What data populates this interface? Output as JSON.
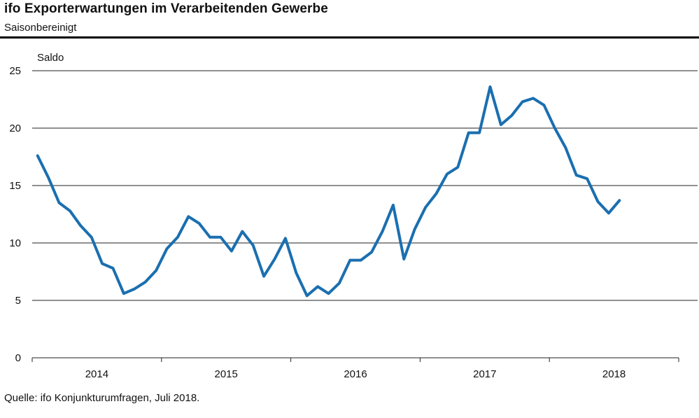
{
  "header": {
    "title": "ifo Exporterwartungen im Verarbeitenden Gewerbe",
    "subtitle": "Saisonbereinigt"
  },
  "footer": {
    "source": "Quelle: ifo Konjunkturumfragen, Juli 2018."
  },
  "chart_data": {
    "type": "line",
    "title": "ifo Exporterwartungen im Verarbeitenden Gewerbe",
    "subtitle": "Saisonbereinigt",
    "ylabel": "Saldo",
    "ylim": [
      0,
      25
    ],
    "yticks": [
      "0",
      "5",
      "10",
      "15",
      "20",
      "25"
    ],
    "year_labels": [
      "2014",
      "2015",
      "2016",
      "2017",
      "2018"
    ],
    "grid": "horizontal",
    "color": "#1a6fb0",
    "series": [
      {
        "x": [
          "2014-01",
          "2014-02",
          "2014-03",
          "2014-04",
          "2014-05",
          "2014-06",
          "2014-07",
          "2014-08",
          "2014-09",
          "2014-10",
          "2014-11",
          "2014-12",
          "2015-01",
          "2015-02",
          "2015-03",
          "2015-04",
          "2015-05",
          "2015-06",
          "2015-07",
          "2015-08",
          "2015-09",
          "2015-10",
          "2015-11",
          "2015-12",
          "2016-01",
          "2016-02",
          "2016-03",
          "2016-04",
          "2016-05",
          "2016-06",
          "2016-07",
          "2016-08",
          "2016-09",
          "2016-10",
          "2016-11",
          "2016-12",
          "2017-01",
          "2017-02",
          "2017-03",
          "2017-04",
          "2017-05",
          "2017-06",
          "2017-07",
          "2017-08",
          "2017-09",
          "2017-10",
          "2017-11",
          "2017-12",
          "2018-01",
          "2018-02",
          "2018-03",
          "2018-04",
          "2018-05",
          "2018-06",
          "2018-07"
        ],
        "values": [
          17.6,
          15.7,
          13.5,
          12.8,
          11.5,
          10.5,
          8.2,
          7.8,
          5.6,
          6.0,
          6.6,
          7.6,
          9.5,
          10.5,
          12.3,
          11.7,
          10.5,
          10.5,
          9.3,
          11.0,
          9.8,
          7.1,
          8.6,
          10.4,
          7.4,
          5.4,
          6.2,
          5.6,
          6.5,
          8.5,
          8.5,
          9.2,
          11.0,
          13.3,
          8.6,
          11.2,
          13.1,
          14.3,
          16.0,
          16.6,
          19.6,
          19.6,
          23.6,
          20.3,
          21.1,
          22.3,
          22.6,
          22.0,
          20.0,
          18.3,
          15.9,
          15.6,
          13.6,
          12.6,
          13.7
        ]
      }
    ]
  }
}
